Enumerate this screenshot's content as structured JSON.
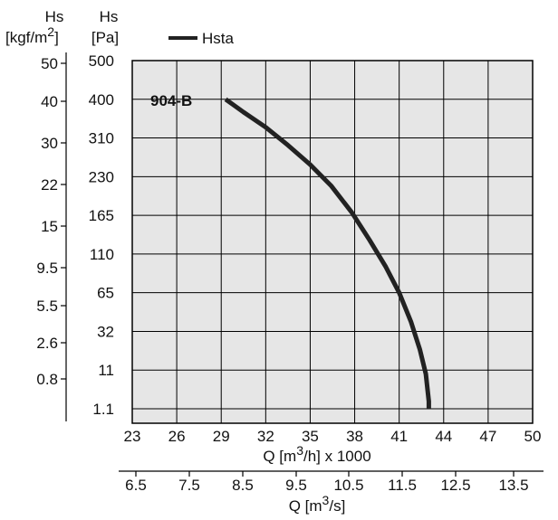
{
  "chart_data": {
    "type": "line",
    "left_axis_kgf": {
      "title_line1": "Hs",
      "title_line2": "[kgf/m",
      "title_sup": "2",
      "title_close": "]",
      "ticks": [
        "50",
        "40",
        "30",
        "22",
        "15",
        "9.5",
        "5.5",
        "2.6",
        "0.8"
      ]
    },
    "left_axis_pa": {
      "title_line1": "Hs",
      "title_line2": "[Pa]",
      "ticks": [
        "500",
        "400",
        "310",
        "230",
        "165",
        "110",
        "65",
        "32",
        "11",
        "1.1"
      ]
    },
    "x_axis_m3h": {
      "ticks": [
        "23",
        "26",
        "29",
        "32",
        "35",
        "38",
        "41",
        "44",
        "47",
        "50"
      ],
      "label_prefix": "Q [m",
      "label_sup": "3",
      "label_suffix": "/h] x 1000",
      "range": [
        23,
        50
      ]
    },
    "x_axis_m3s": {
      "ticks": [
        "6.5",
        "7.5",
        "8.5",
        "9.5",
        "10.5",
        "11.5",
        "12.5",
        "13.5"
      ],
      "label_prefix": "Q [m",
      "label_sup": "3",
      "label_suffix": "/s]"
    },
    "legend": {
      "label": "Hsta",
      "color": "#222222",
      "placement": "top"
    },
    "curve_label": "904-B",
    "series": [
      {
        "name": "Hsta",
        "color": "#222222",
        "x_m3h_thousands": [
          29.3,
          30.5,
          32.0,
          33.5,
          35.0,
          36.4,
          37.8,
          39.0,
          40.1,
          41.0,
          41.8,
          42.4,
          42.8,
          43.0,
          43.0
        ],
        "y_pa": [
          400,
          370,
          335,
          295,
          255,
          215,
          170,
          130,
          95,
          65,
          40,
          22,
          10,
          3,
          1.1
        ]
      }
    ],
    "grid": true,
    "background": "#e6e6e6"
  }
}
